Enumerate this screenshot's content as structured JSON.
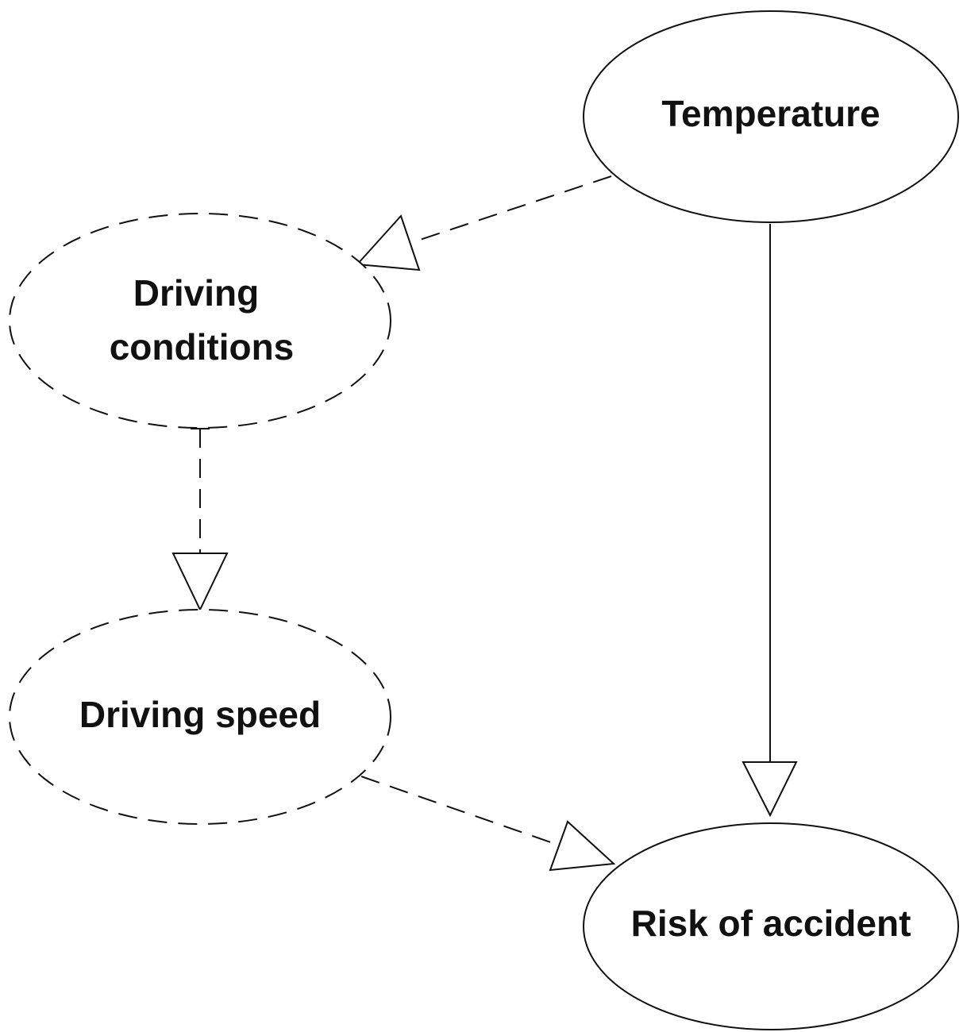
{
  "nodes": [
    {
      "label": "Temperature"
    },
    {
      "label_lines": [
        "Driving",
        "conditions"
      ]
    },
    {
      "label": "Driving speed"
    },
    {
      "label": "Risk of accident"
    }
  ]
}
